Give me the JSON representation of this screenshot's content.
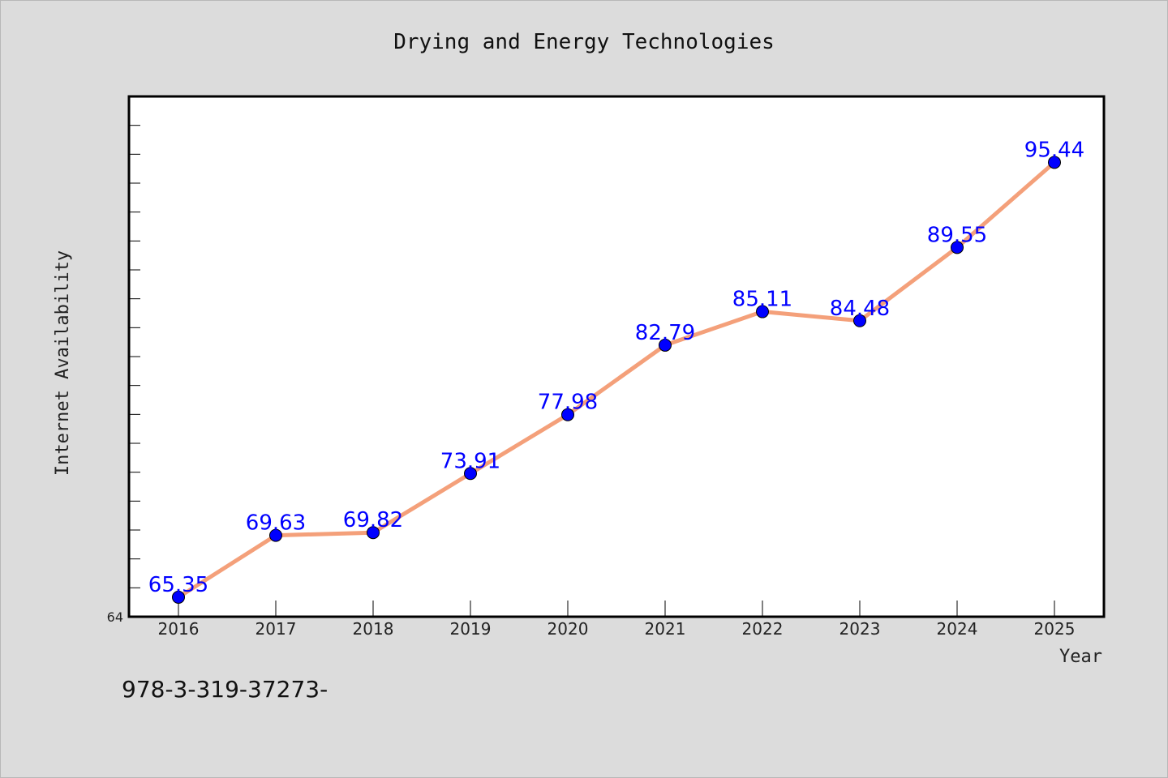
{
  "caption": "978-3-319-37273-",
  "chart_data": {
    "type": "line",
    "title": "Drying and Energy Technologies",
    "xlabel": "Year",
    "ylabel": "Internet Availability",
    "categories": [
      "2016",
      "2017",
      "2018",
      "2019",
      "2020",
      "2021",
      "2022",
      "2023",
      "2024",
      "2025"
    ],
    "series": [
      {
        "values": [
          65.35,
          69.63,
          69.82,
          73.91,
          77.98,
          82.79,
          85.11,
          84.48,
          89.55,
          95.44
        ],
        "labels": [
          "65.35",
          "69.63",
          "69.82",
          "73.91",
          "77.98",
          "82.79",
          "85.11",
          "84.48",
          "89.55",
          "95.44"
        ],
        "line_color": "#f4a07a",
        "marker_color": "#0000ff"
      }
    ],
    "ylim": [
      64,
      100
    ],
    "y_min_label": "64",
    "grid": false,
    "legend": "none"
  }
}
